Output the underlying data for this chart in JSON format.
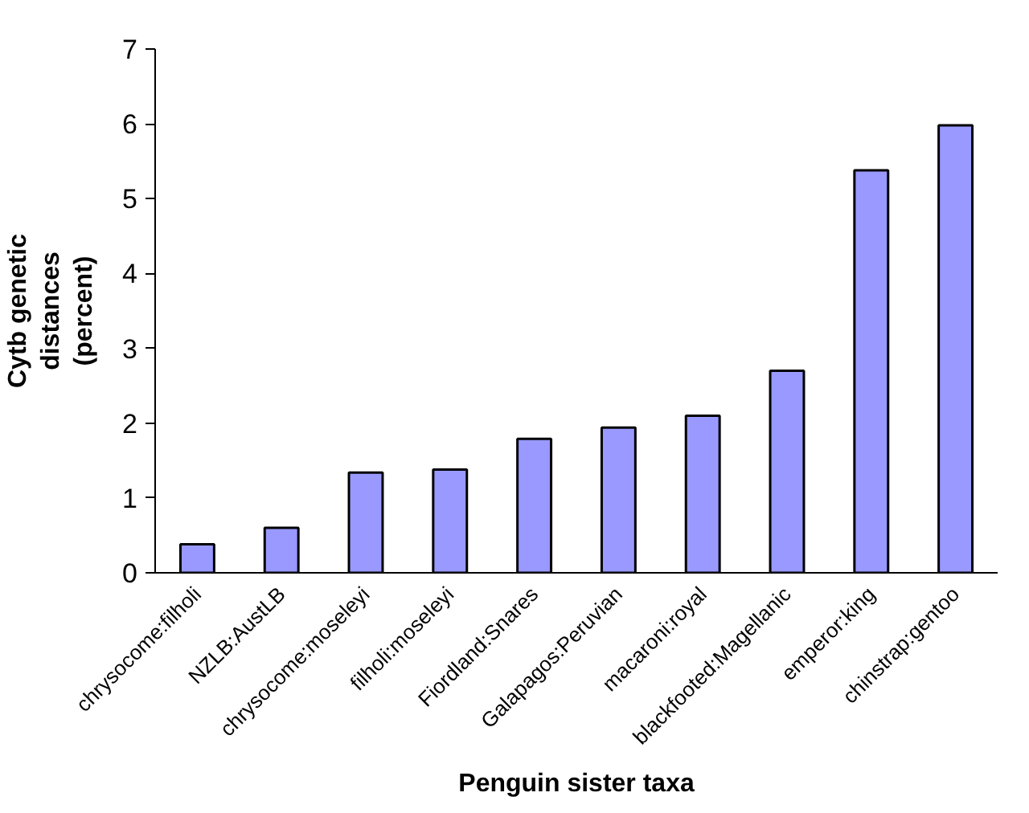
{
  "chart_data": {
    "type": "bar",
    "xlabel": "Penguin sister taxa",
    "ylabel": "Cytb genetic distances (percent)",
    "categories": [
      "chrysocome:filholi",
      "NZLB:AustLB",
      "chrysocome:moseleyi",
      "filholi:moseleyi",
      "Fiordland:Snares",
      "Galapagos:Peruvian",
      "macaroni:royal",
      "blackfooted:Magellanic",
      "emperor:king",
      "chinstrap:gentoo"
    ],
    "values": [
      0.38,
      0.6,
      1.34,
      1.38,
      1.79,
      1.94,
      2.1,
      2.7,
      5.38,
      5.98
    ],
    "color": "#9999ff",
    "ylim": [
      0,
      7
    ],
    "yticks": [
      0,
      1,
      2,
      3,
      4,
      5,
      6,
      7
    ],
    "grid": false
  }
}
